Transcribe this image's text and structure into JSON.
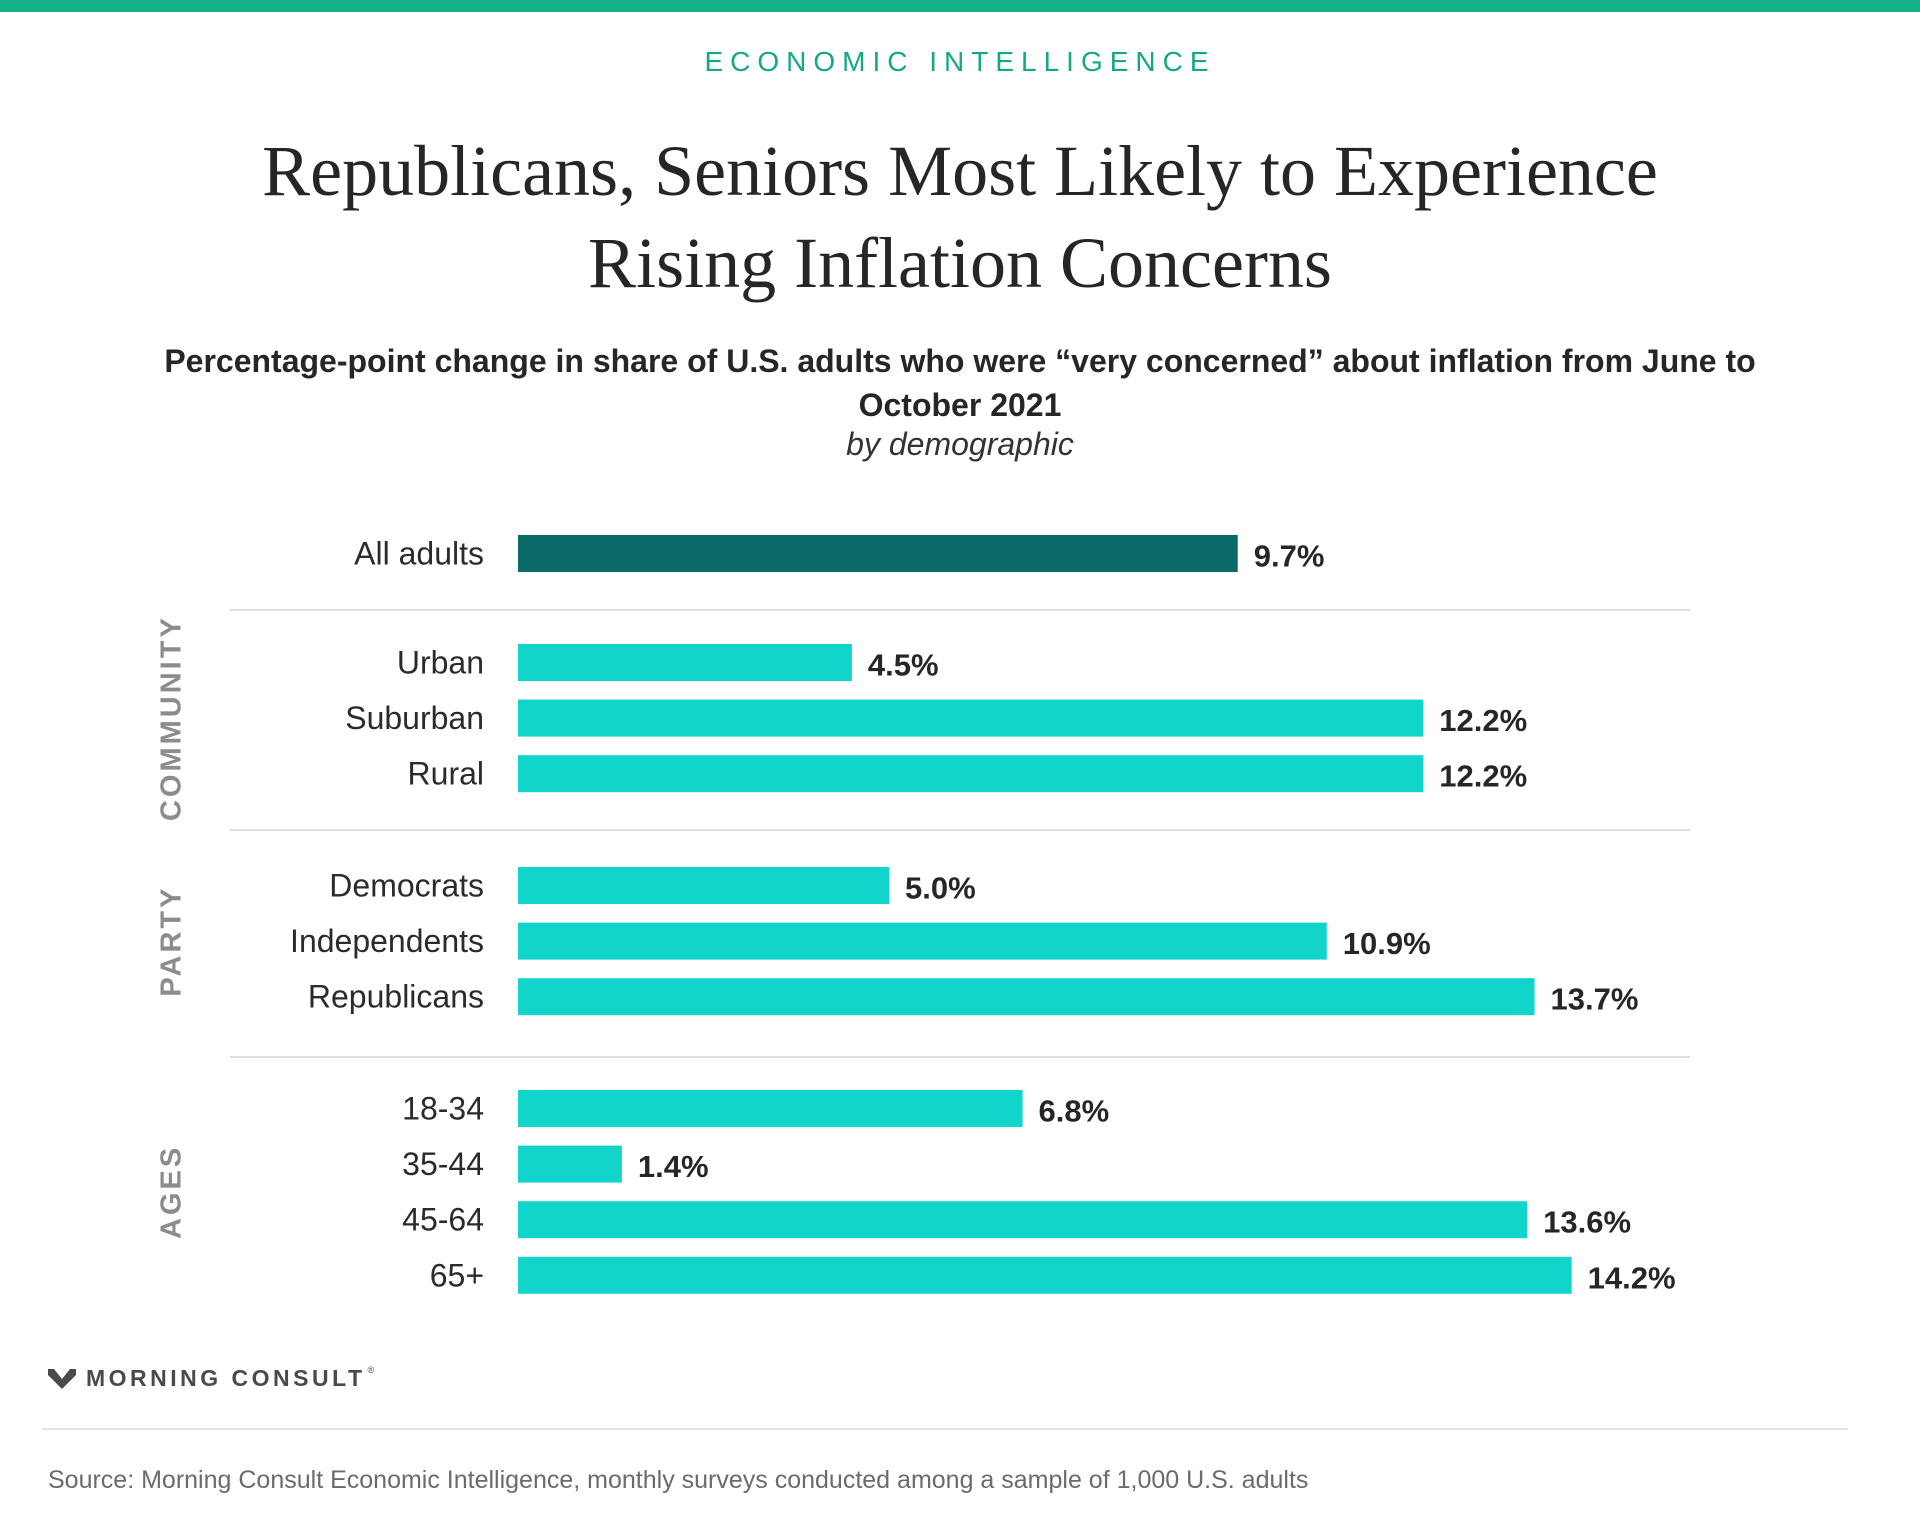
{
  "header": {
    "kicker": "ECONOMIC INTELLIGENCE",
    "title": "Republicans, Seniors Most Likely to Experience Rising Inflation Concerns",
    "subtitle": "Percentage-point change in share of U.S. adults who were “very concerned” about inflation from June to October 2021",
    "subtitle_note": "by demographic"
  },
  "colors": {
    "accent": "#12b386",
    "total_bar": "#0a6b69",
    "group_bar": "#11d5cb"
  },
  "chart_data": {
    "type": "bar",
    "orientation": "horizontal",
    "value_suffix": "%",
    "xlim": [
      0,
      15
    ],
    "grid": false,
    "legend": "none",
    "groups": [
      {
        "label": "",
        "categories": [
          "All adults"
        ],
        "values": [
          9.7
        ],
        "value_labels": [
          "9.7%"
        ],
        "color": "#0a6b69"
      },
      {
        "label": "COMMUNITY",
        "categories": [
          "Urban",
          "Suburban",
          "Rural"
        ],
        "values": [
          4.5,
          12.2,
          12.2
        ],
        "value_labels": [
          "4.5%",
          "12.2%",
          "12.2%"
        ],
        "color": "#11d5cb"
      },
      {
        "label": "PARTY",
        "categories": [
          "Democrats",
          "Independents",
          "Republicans"
        ],
        "values": [
          5.0,
          10.9,
          13.7
        ],
        "value_labels": [
          "5.0%",
          "10.9%",
          "13.7%"
        ],
        "color": "#11d5cb"
      },
      {
        "label": "AGES",
        "categories": [
          "18-34",
          "35-44",
          "45-64",
          "65+"
        ],
        "values": [
          6.8,
          1.4,
          13.6,
          14.2
        ],
        "value_labels": [
          "6.8%",
          "1.4%",
          "13.6%",
          "14.2%"
        ],
        "color": "#11d5cb"
      }
    ]
  },
  "footer": {
    "brand": "MORNING CONSULT",
    "brand_mark": "®",
    "source": "Source: Morning Consult Economic Intelligence, monthly surveys conducted among a sample of 1,000 U.S. adults"
  }
}
